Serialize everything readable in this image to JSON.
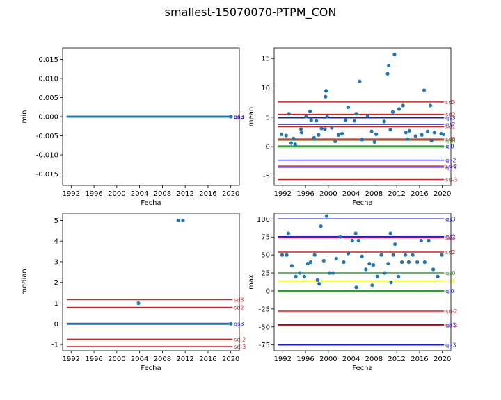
{
  "title": "smallest-15070070-PTPM_CON",
  "colors": {
    "points": "#1f77b4",
    "sd": "#e6191a",
    "q": "#1919e6",
    "green": "#2ca02c",
    "yellow": "#ffff00"
  },
  "chart_data": [
    {
      "id": "min",
      "type": "scatter",
      "xlabel": "Fecha",
      "ylabel": "min",
      "xlim": [
        1990.5,
        2021.5
      ],
      "ylim": [
        -0.018,
        0.018
      ],
      "xticks": [
        1992,
        1996,
        2000,
        2004,
        2008,
        2012,
        2016,
        2020
      ],
      "yticks": [
        -0.015,
        -0.01,
        -0.005,
        0.0,
        0.005,
        0.01,
        0.015
      ],
      "ytick_labels": [
        "-0.015",
        "-0.010",
        "-0.005",
        "0.000",
        "0.005",
        "0.010",
        "0.015"
      ],
      "points": {
        "x": [
          2020.0
        ],
        "y": [
          0
        ]
      },
      "flat_zero_series": true,
      "reference_lines": [
        {
          "label": "sd3",
          "value": 0,
          "kind": "sd"
        },
        {
          "label": "qs3",
          "value": 0,
          "kind": "q"
        },
        {
          "label": "qi-3",
          "value": 0,
          "kind": "q"
        }
      ]
    },
    {
      "id": "mean",
      "type": "scatter",
      "xlabel": "Fecha",
      "ylabel": "mean",
      "xlim": [
        1990.5,
        2021.5
      ],
      "ylim": [
        -6.6,
        16.8
      ],
      "xticks": [
        1992,
        1996,
        2000,
        2004,
        2008,
        2012,
        2016,
        2020
      ],
      "yticks": [
        -5,
        0,
        5,
        10,
        15
      ],
      "ytick_labels": [
        "-5",
        "0",
        "5",
        "10",
        "15"
      ],
      "points": {
        "x": [
          1991.8,
          1992.6,
          1993.1,
          1993.9,
          1995.2,
          1995.3,
          1996.1,
          1996.8,
          1997.0,
          1997.9,
          1998.3,
          1998.8,
          1999.4,
          1999.5,
          1999.6,
          1999.8,
          2000.6,
          2001.8,
          2002.4,
          2003.0,
          2003.5,
          2004.6,
          2004.9,
          2005.5,
          2006.9,
          2007.6,
          2008.4,
          2009.8,
          2010.4,
          2010.6,
          2010.9,
          2011.3,
          2011.6,
          2012.4,
          2013.1,
          2013.6,
          2014.2,
          2015.3,
          2016.4,
          2016.8,
          2017.4,
          2017.9,
          2018.6,
          2019.8,
          2020.2,
          1993.5,
          1994.2,
          1997.5,
          2001.2,
          2005.9,
          2008.1,
          2013.9,
          2018.1
        ],
        "y": [
          2.1,
          1.9,
          5.6,
          1.4,
          3.0,
          2.4,
          5.1,
          6.0,
          4.5,
          4.4,
          2.0,
          3.1,
          3.0,
          8.5,
          9.5,
          5.1,
          3.2,
          2.0,
          2.2,
          4.5,
          6.7,
          4.4,
          5.6,
          11.1,
          5.2,
          2.6,
          2.1,
          4.3,
          12.4,
          13.8,
          2.9,
          5.9,
          15.7,
          6.4,
          7.0,
          2.4,
          2.7,
          1.8,
          2.0,
          9.6,
          2.6,
          7.0,
          2.4,
          2.2,
          2.1,
          0.6,
          0.4,
          1.5,
          0.9,
          1.2,
          0.8,
          1.3,
          1.0
        ]
      },
      "reference_lines": [
        {
          "label": "sd3",
          "value": 7.6,
          "kind": "sd"
        },
        {
          "label": "sd2",
          "value": 5.5,
          "kind": "sd"
        },
        {
          "label": "qs3",
          "value": 4.9,
          "kind": "q"
        },
        {
          "label": "qs2",
          "value": 3.8,
          "kind": "q"
        },
        {
          "label": "sd1",
          "value": 3.4,
          "kind": "sd"
        },
        {
          "label": "sd0",
          "value": 1.3,
          "kind": "sd"
        },
        {
          "label": "qs0",
          "value": 1.1,
          "kind": "green"
        },
        {
          "label": "qi0",
          "value": 0.1,
          "kind": "q"
        },
        {
          "label": "qi-2",
          "value": -2.3,
          "kind": "q"
        },
        {
          "label": "sd-2",
          "value": -3.3,
          "kind": "sd"
        },
        {
          "label": "qi-3",
          "value": -3.5,
          "kind": "q"
        },
        {
          "label": "sd-3",
          "value": -5.6,
          "kind": "sd"
        }
      ]
    },
    {
      "id": "median",
      "type": "scatter",
      "xlabel": "Fecha",
      "ylabel": "median",
      "xlim": [
        1990.5,
        2021.5
      ],
      "ylim": [
        -1.3,
        5.35
      ],
      "xticks": [
        1992,
        1996,
        2000,
        2004,
        2008,
        2012,
        2016,
        2020
      ],
      "yticks": [
        -1,
        0,
        1,
        2,
        3,
        4,
        5
      ],
      "ytick_labels": [
        "-1",
        "0",
        "1",
        "2",
        "3",
        "4",
        "5"
      ],
      "points": {
        "x": [
          2003.8,
          2010.8,
          2011.6,
          2020.0
        ],
        "y": [
          1.0,
          5.0,
          5.0,
          0
        ]
      },
      "flat_zero_series": true,
      "reference_lines": [
        {
          "label": "sd3",
          "value": 1.17,
          "kind": "sd"
        },
        {
          "label": "sd2",
          "value": 0.8,
          "kind": "sd"
        },
        {
          "label": "qs3",
          "value": 0.01,
          "kind": "q"
        },
        {
          "label": "sd-2",
          "value": -0.74,
          "kind": "sd"
        },
        {
          "label": "sd-3",
          "value": -1.1,
          "kind": "sd"
        }
      ]
    },
    {
      "id": "max",
      "type": "scatter",
      "xlabel": "Fecha",
      "ylabel": "max",
      "xlim": [
        1990.5,
        2021.5
      ],
      "ylim": [
        -83,
        108
      ],
      "xticks": [
        1992,
        1996,
        2000,
        2004,
        2008,
        2012,
        2016,
        2020
      ],
      "yticks": [
        -75,
        -50,
        -25,
        0,
        25,
        50,
        75,
        100
      ],
      "ytick_labels": [
        "-75",
        "-50",
        "-25",
        "0",
        "25",
        "50",
        "75",
        "100"
      ],
      "points": {
        "x": [
          1991.9,
          1992.7,
          1993.0,
          1993.6,
          1994.3,
          1995.0,
          1995.8,
          1996.4,
          1996.9,
          1997.6,
          1998.1,
          1998.7,
          1999.2,
          1999.7,
          2000.2,
          2000.8,
          2001.4,
          2002.1,
          2002.7,
          2003.5,
          2004.2,
          2004.8,
          2005.3,
          2005.9,
          2006.6,
          2007.2,
          2007.9,
          2008.6,
          2009.3,
          2009.9,
          2010.5,
          2010.9,
          2011.4,
          2011.7,
          2012.3,
          2012.9,
          2013.5,
          2014.1,
          2014.8,
          2015.6,
          2016.3,
          2016.9,
          2017.6,
          2018.4,
          2019.2,
          2019.9,
          1998.4,
          2004.9,
          2007.7,
          2011.0
        ],
        "y": [
          50,
          50,
          80,
          35,
          20,
          25,
          20,
          38,
          40,
          50,
          15,
          90,
          42,
          104,
          25,
          25,
          45,
          75,
          40,
          52,
          70,
          80,
          70,
          48,
          30,
          38,
          36,
          20,
          50,
          25,
          38,
          80,
          50,
          65,
          20,
          40,
          50,
          40,
          50,
          40,
          70,
          40,
          70,
          30,
          20,
          50,
          10,
          5,
          8,
          12
        ]
      },
      "reference_lines": [
        {
          "label": "qs3",
          "value": 100,
          "kind": "q"
        },
        {
          "label": "qs2",
          "value": 75.5,
          "kind": "q"
        },
        {
          "label": "sd3",
          "value": 74,
          "kind": "sd"
        },
        {
          "label": "sd2",
          "value": 54,
          "kind": "sd"
        },
        {
          "label": "qs0",
          "value": 25,
          "kind": "green"
        },
        {
          "label": "sd0",
          "value": 14,
          "kind": "yellow"
        },
        {
          "label": "qi0",
          "value": 0,
          "kind": "q"
        },
        {
          "label": "sd-2",
          "value": -28,
          "kind": "sd"
        },
        {
          "label": "qi-2",
          "value": -47,
          "kind": "q"
        },
        {
          "label": "sd-3",
          "value": -48,
          "kind": "sd"
        },
        {
          "label": "qi-3",
          "value": -75,
          "kind": "q"
        }
      ]
    }
  ]
}
